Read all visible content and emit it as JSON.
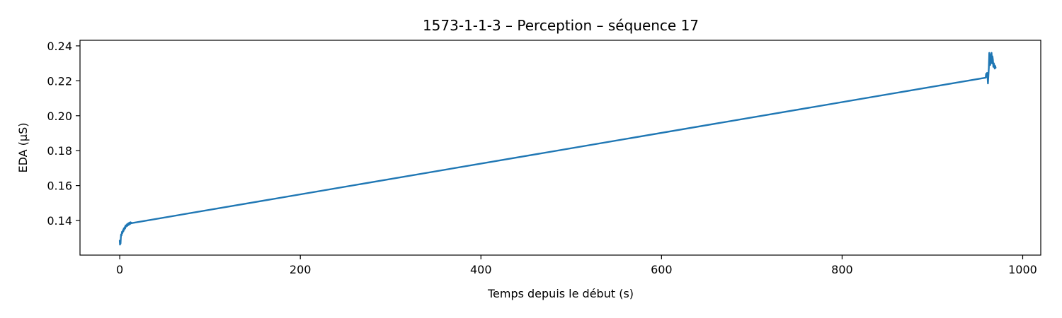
{
  "chart_data": {
    "type": "line",
    "title": "1573-1-1-3 – Perception – séquence 17",
    "xlabel": "Temps depuis le début (s)",
    "ylabel": "EDA (µS)",
    "xlim": [
      -44,
      1020
    ],
    "ylim": [
      0.1202,
      0.2432
    ],
    "x_ticks": [
      0,
      200,
      400,
      600,
      800,
      1000
    ],
    "x_tick_labels": [
      "0",
      "200",
      "400",
      "600",
      "800",
      "1000"
    ],
    "y_ticks": [
      0.14,
      0.16,
      0.18,
      0.2,
      0.22,
      0.24
    ],
    "y_tick_labels": [
      "0.14",
      "0.16",
      "0.18",
      "0.20",
      "0.22",
      "0.24"
    ],
    "grid": false,
    "colors": {
      "line": "#1f77b4"
    },
    "series": [
      {
        "x": [
          0,
          0.3,
          0.6,
          0.9,
          1.2,
          1.5,
          2,
          2.5,
          3,
          3.5,
          4,
          4.5,
          5,
          5.5,
          6,
          6.5,
          7,
          7.5,
          8,
          8.5,
          9,
          9.5,
          10,
          10.5,
          11,
          11.5,
          12,
          12.5,
          13,
          13.5,
          14,
          959,
          959.5,
          960,
          960.5,
          961,
          961.5,
          962,
          962.5,
          963,
          963.5,
          964,
          964.5,
          965,
          965.5,
          966,
          966.5,
          967,
          967.5,
          968,
          968.5,
          969,
          969.5,
          970
        ],
        "values": [
          0.1285,
          0.1262,
          0.1278,
          0.1268,
          0.13,
          0.132,
          0.1315,
          0.1335,
          0.1328,
          0.1345,
          0.1338,
          0.1355,
          0.1347,
          0.1362,
          0.1355,
          0.1372,
          0.1365,
          0.1368,
          0.1378,
          0.137,
          0.1382,
          0.1374,
          0.1385,
          0.1377,
          0.1388,
          0.138,
          0.139,
          0.1384,
          0.1387,
          0.1385,
          0.1386,
          0.2218,
          0.224,
          0.2222,
          0.2245,
          0.2228,
          0.2185,
          0.223,
          0.2275,
          0.236,
          0.233,
          0.229,
          0.231,
          0.235,
          0.236,
          0.23,
          0.234,
          0.232,
          0.228,
          0.23,
          0.229,
          0.227,
          0.2285,
          0.2275
        ]
      }
    ]
  }
}
